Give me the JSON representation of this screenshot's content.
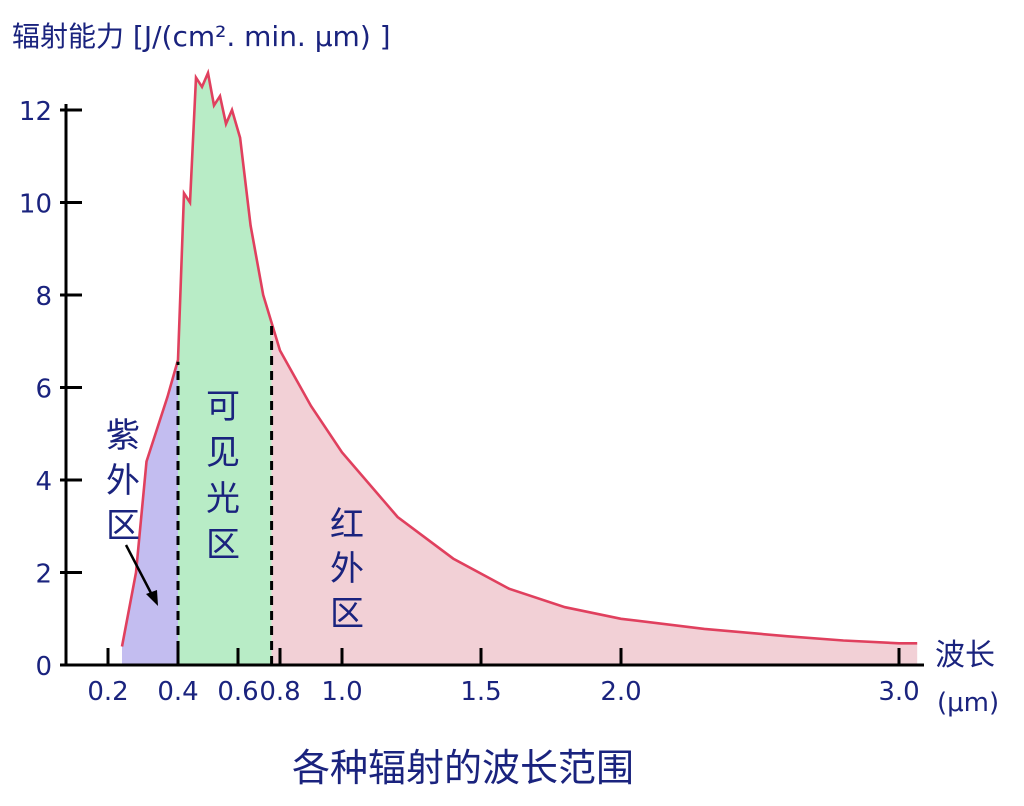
{
  "chart_data": {
    "type": "area",
    "title": "各种辐射的波长范围",
    "ylabel": "辐射能力 [J/(cm². min.  μm) ]",
    "xlabel": "波长",
    "xlabel_unit": "(μm)",
    "ylim": [
      0,
      12.5
    ],
    "xlim": [
      0.0,
      3.1
    ],
    "yticks": [
      "0",
      "2",
      "4",
      "6",
      "8",
      "10",
      "12"
    ],
    "xticks": [
      {
        "value": 0.2,
        "label": "0.2"
      },
      {
        "value": 0.4,
        "label": "0.4"
      },
      {
        "value": 0.6,
        "label": "0.6"
      },
      {
        "value": 0.8,
        "label": "0.8"
      },
      {
        "value": 1.0,
        "label": "1.0"
      },
      {
        "value": 1.5,
        "label": "1.5"
      },
      {
        "value": 2.0,
        "label": "2.0"
      },
      {
        "value": 3.0,
        "label": "3.0"
      }
    ],
    "curve": [
      [
        0.24,
        0.4
      ],
      [
        0.28,
        2.0
      ],
      [
        0.31,
        4.4
      ],
      [
        0.34,
        5.1
      ],
      [
        0.37,
        5.8
      ],
      [
        0.4,
        6.6
      ],
      [
        0.42,
        10.2
      ],
      [
        0.44,
        10.0
      ],
      [
        0.46,
        12.7
      ],
      [
        0.48,
        12.5
      ],
      [
        0.5,
        12.8
      ],
      [
        0.52,
        12.1
      ],
      [
        0.54,
        12.3
      ],
      [
        0.56,
        11.7
      ],
      [
        0.58,
        12.0
      ],
      [
        0.61,
        11.4
      ],
      [
        0.66,
        9.5
      ],
      [
        0.72,
        8.0
      ],
      [
        0.8,
        6.8
      ],
      [
        0.9,
        5.6
      ],
      [
        1.0,
        4.6
      ],
      [
        1.2,
        3.2
      ],
      [
        1.4,
        2.3
      ],
      [
        1.6,
        1.65
      ],
      [
        1.8,
        1.25
      ],
      [
        2.0,
        1.0
      ],
      [
        2.3,
        0.78
      ],
      [
        2.6,
        0.62
      ],
      [
        2.8,
        0.53
      ],
      [
        3.0,
        0.47
      ],
      [
        3.07,
        0.47
      ]
    ],
    "regions": [
      {
        "name": "紫外区",
        "from": 0.24,
        "to": 0.4,
        "color": "#c3bdf0"
      },
      {
        "name": "可见光区",
        "from": 0.4,
        "to": 0.76,
        "color": "#b8ecc6"
      },
      {
        "name": "红外区",
        "from": 0.76,
        "to": 3.07,
        "color": "#f2d0d6"
      }
    ],
    "boundaries": [
      0.4,
      0.76
    ],
    "curve_color": "#e0405e",
    "labels": {
      "uv": [
        "紫",
        "外",
        "区"
      ],
      "visible": [
        "可",
        "见",
        "光",
        "区"
      ],
      "ir": [
        "红",
        "外",
        "区"
      ]
    }
  }
}
